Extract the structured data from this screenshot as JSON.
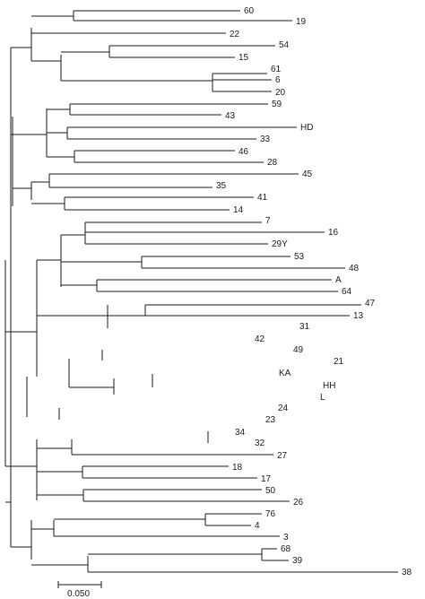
{
  "tree": {
    "leaf_labels": [
      "60",
      "19",
      "22",
      "54",
      "15",
      "61",
      "6",
      "20",
      "59",
      "43",
      "HD",
      "33",
      "46",
      "28",
      "45",
      "35",
      "41",
      "14",
      "7",
      "16",
      "29Y",
      "53",
      "48",
      "A",
      "64",
      "47",
      "13",
      "31",
      "42",
      "49",
      "21",
      "KA",
      "HH",
      "L",
      "24",
      "23",
      "34",
      "32",
      "27",
      "18",
      "17",
      "50",
      "26",
      "76",
      "4",
      "3",
      "68",
      "39",
      "38"
    ]
  },
  "scale_bar": {
    "label": "0.050"
  }
}
